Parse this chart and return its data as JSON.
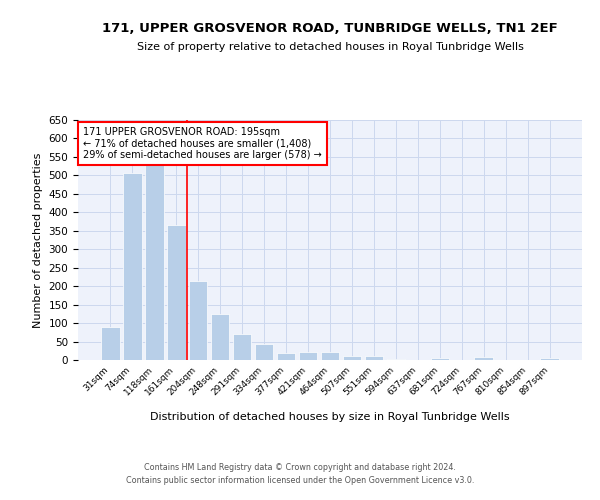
{
  "title1": "171, UPPER GROSVENOR ROAD, TUNBRIDGE WELLS, TN1 2EF",
  "title2": "Size of property relative to detached houses in Royal Tunbridge Wells",
  "xlabel": "Distribution of detached houses by size in Royal Tunbridge Wells",
  "ylabel": "Number of detached properties",
  "footer1": "Contains HM Land Registry data © Crown copyright and database right 2024.",
  "footer2": "Contains public sector information licensed under the Open Government Licence v3.0.",
  "annotation_line1": "171 UPPER GROSVENOR ROAD: 195sqm",
  "annotation_line2": "← 71% of detached houses are smaller (1,408)",
  "annotation_line3": "29% of semi-detached houses are larger (578) →",
  "bar_color": "#b8cfe8",
  "grid_color": "#ccd8ee",
  "marker_line_color": "red",
  "categories": [
    "31sqm",
    "74sqm",
    "118sqm",
    "161sqm",
    "204sqm",
    "248sqm",
    "291sqm",
    "334sqm",
    "377sqm",
    "421sqm",
    "464sqm",
    "507sqm",
    "551sqm",
    "594sqm",
    "637sqm",
    "681sqm",
    "724sqm",
    "767sqm",
    "810sqm",
    "854sqm",
    "897sqm"
  ],
  "values": [
    90,
    507,
    530,
    365,
    215,
    125,
    70,
    43,
    18,
    21,
    21,
    12,
    10,
    3,
    0,
    6,
    0,
    7,
    0,
    0,
    6
  ],
  "ylim": [
    0,
    650
  ],
  "yticks": [
    0,
    50,
    100,
    150,
    200,
    250,
    300,
    350,
    400,
    450,
    500,
    550,
    600,
    650
  ],
  "background_color": "#eef2fb",
  "vline_x": 3.5
}
